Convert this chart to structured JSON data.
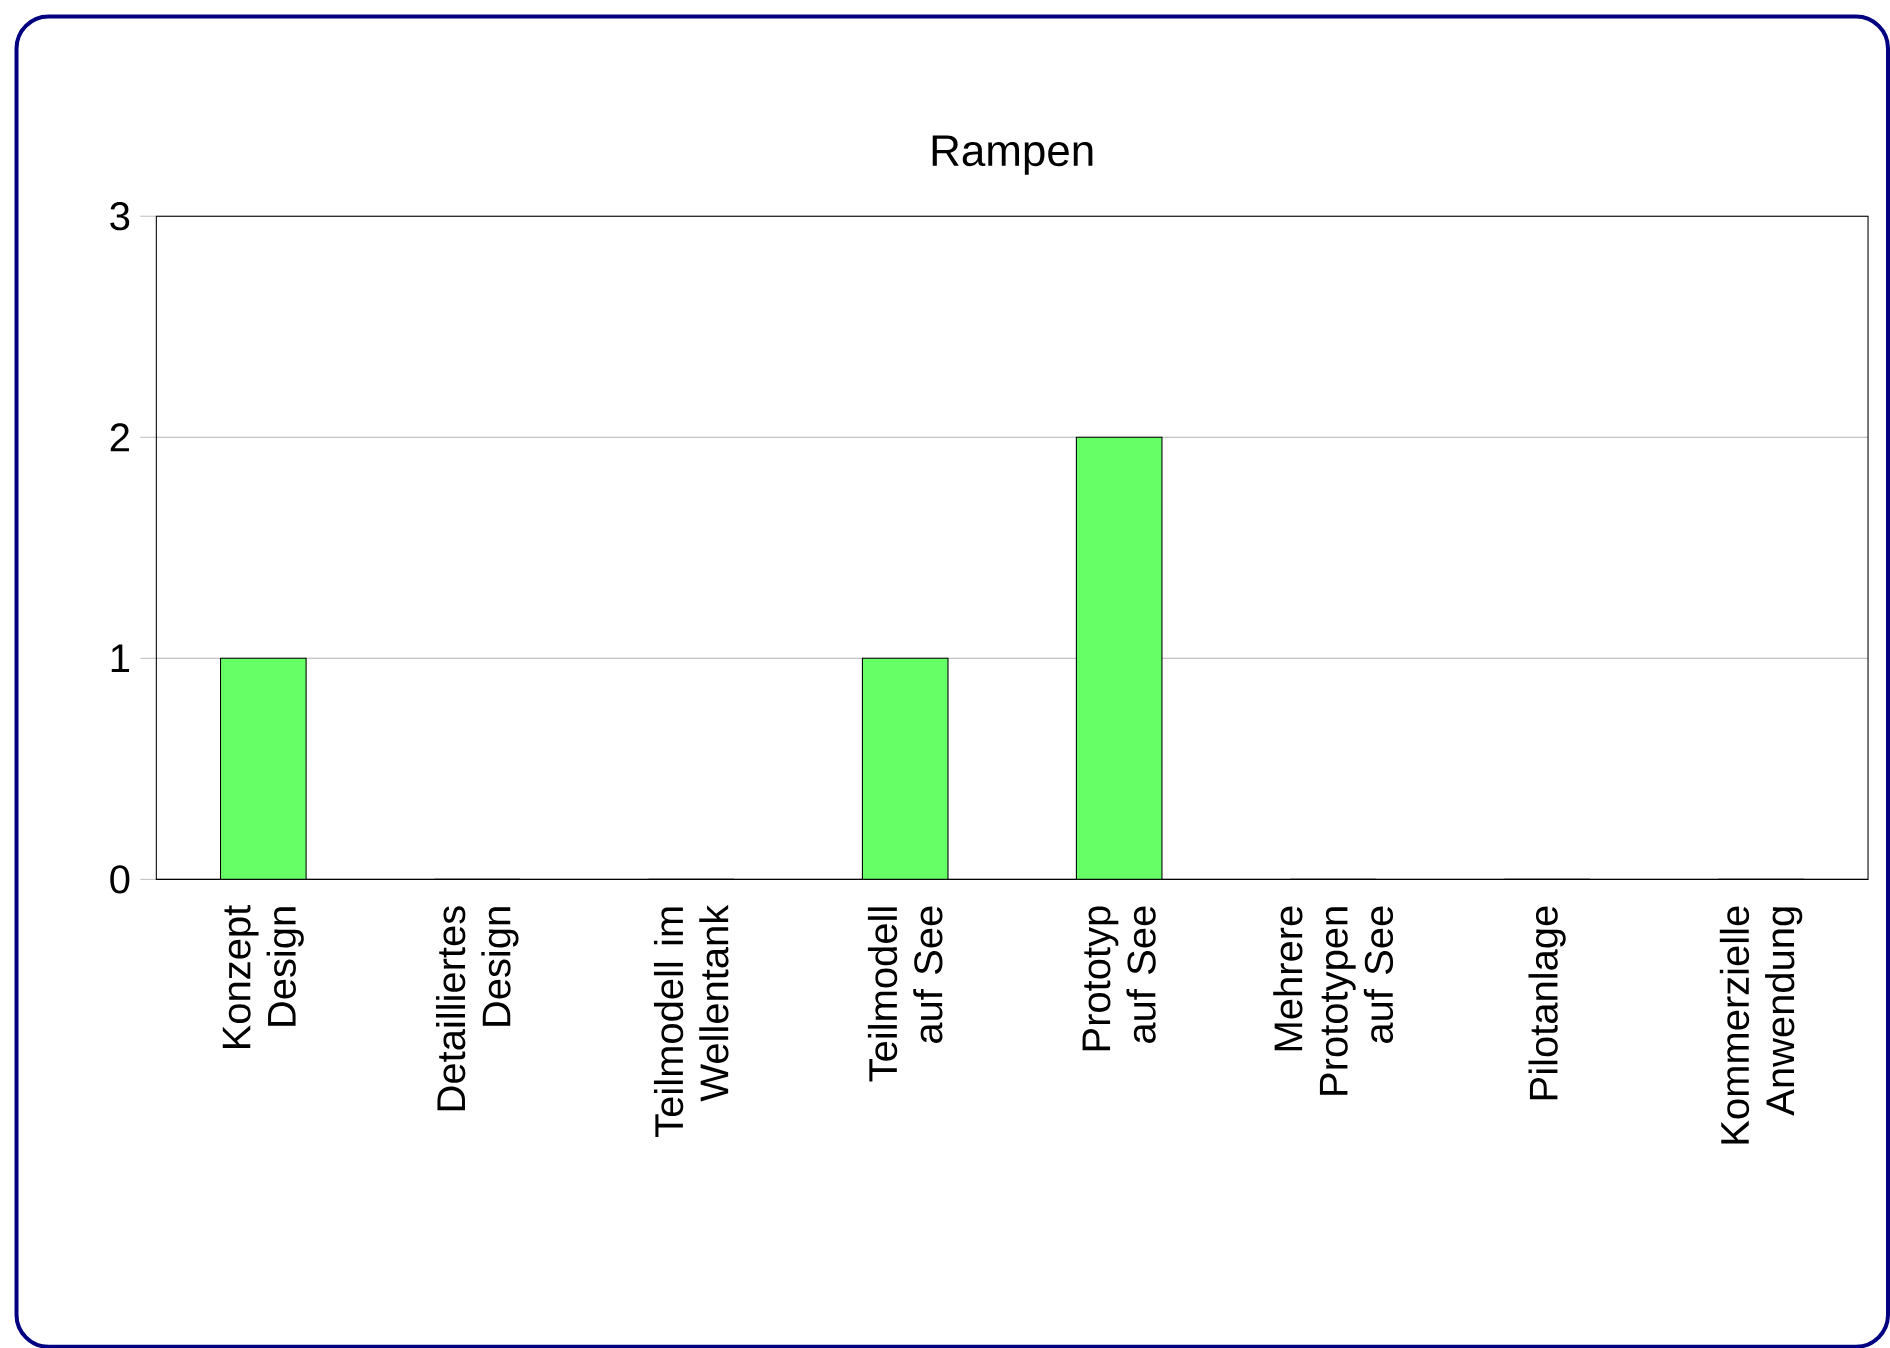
{
  "chart_data": {
    "type": "bar",
    "title": "Rampen",
    "categories": [
      "Konzept Design",
      "Detailliertes Design",
      "Teilmodell im Wellentank",
      "Teilmodell auf See",
      "Prototyp auf See",
      "Mehrere Prototypen auf See",
      "Pilotanlage",
      "Kommerzielle Anwendung"
    ],
    "values": [
      1,
      0,
      0,
      1,
      2,
      0,
      0,
      0
    ],
    "color": "#66ff66",
    "ylim": [
      0,
      3
    ],
    "yticks": [
      0,
      1,
      2,
      3
    ],
    "grid": "y"
  }
}
